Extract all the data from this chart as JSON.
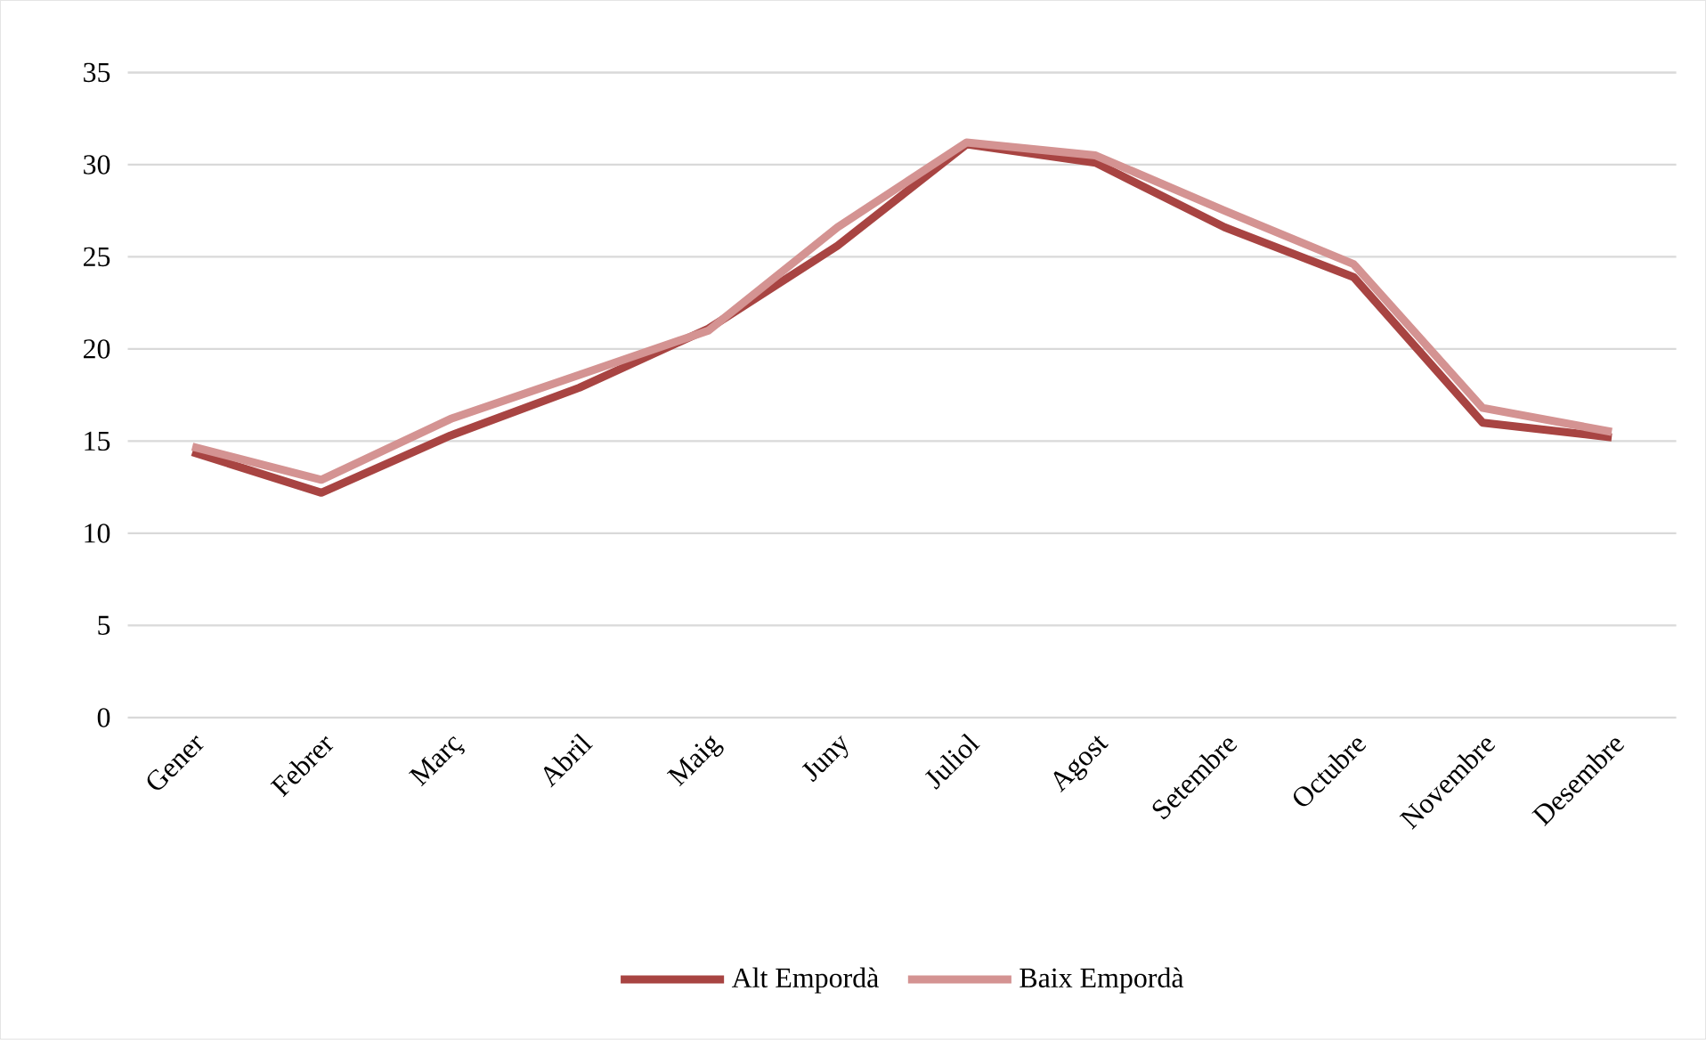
{
  "chart_data": {
    "type": "line",
    "categories": [
      "Gener",
      "Febrer",
      "Març",
      "Abril",
      "Maig",
      "Juny",
      "Juliol",
      "Agost",
      "Setembre",
      "Octubre",
      "Novembre",
      "Desembre"
    ],
    "series": [
      {
        "name": "Alt Empordà",
        "color": "#a84442",
        "values": [
          14.4,
          12.2,
          15.3,
          17.9,
          21.1,
          25.6,
          31.1,
          30.1,
          26.6,
          23.9,
          16.0,
          15.2
        ]
      },
      {
        "name": "Baix Empordà",
        "color": "#d49392",
        "values": [
          14.7,
          12.9,
          16.2,
          18.6,
          21.0,
          26.6,
          31.2,
          30.5,
          27.5,
          24.6,
          16.8,
          15.5
        ]
      }
    ],
    "ylim": [
      0,
      35
    ],
    "yticks": [
      0,
      5,
      10,
      15,
      20,
      25,
      30,
      35
    ],
    "grid": "y",
    "legend": "bottom"
  }
}
